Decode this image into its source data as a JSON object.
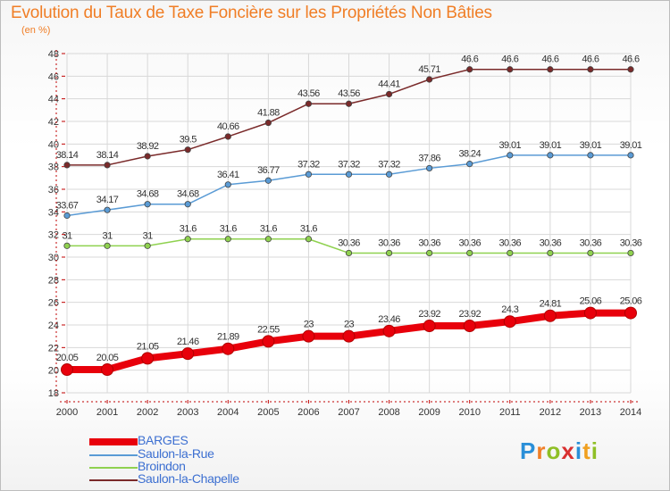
{
  "title": "Evolution du Taux de Taxe Foncière sur les Propriétés Non Bâties",
  "subtitle": "(en %)",
  "logo": {
    "text": "Proxiti"
  },
  "chart_data": {
    "type": "line",
    "x": [
      "2000",
      "2001",
      "2002",
      "2003",
      "2004",
      "2005",
      "2006",
      "2007",
      "2008",
      "2009",
      "2010",
      "2011",
      "2012",
      "2013",
      "2014"
    ],
    "ylim": [
      18,
      48
    ],
    "yticks": [
      18,
      20,
      22,
      24,
      26,
      28,
      30,
      32,
      34,
      36,
      38,
      40,
      42,
      44,
      46,
      48
    ],
    "grid": true,
    "legend_position": "bottom-left",
    "series": [
      {
        "name": "BARGES",
        "color": "#e8000b",
        "values": [
          20.05,
          20.05,
          21.05,
          21.46,
          21.89,
          22.55,
          23,
          23,
          23.46,
          23.92,
          23.92,
          24.3,
          24.81,
          25.06,
          25.06
        ],
        "labels": [
          "20.05",
          "20.05",
          "21.05",
          "21.46",
          "21.89",
          "22.55",
          "23",
          "23",
          "23.46",
          "23.92",
          "23.92",
          "24.3",
          "24.81",
          "25.06",
          "25.06"
        ]
      },
      {
        "name": "Saulon-la-Rue",
        "color": "#5a9bd5",
        "values": [
          33.67,
          34.17,
          34.68,
          34.68,
          36.41,
          36.77,
          37.32,
          37.32,
          37.32,
          37.86,
          38.24,
          39.01,
          39.01,
          39.01,
          39.01
        ],
        "labels": [
          "33.67",
          "34.17",
          "34.68",
          "34.68",
          "36.41",
          "36.77",
          "37.32",
          "37.32",
          "37.32",
          "37.86",
          "38.24",
          "39.01",
          "39.01",
          "39.01",
          "39.01"
        ]
      },
      {
        "name": "Broindon",
        "color": "#8fd14f",
        "values": [
          31,
          31,
          31,
          31.6,
          31.6,
          31.6,
          31.6,
          30.36,
          30.36,
          30.36,
          30.36,
          30.36,
          30.36,
          30.36,
          30.36
        ],
        "labels": [
          "31",
          "31",
          "31",
          "31.6",
          "31.6",
          "31.6",
          "31.6",
          "30.36",
          "30.36",
          "30.36",
          "30.36",
          "30.36",
          "30.36",
          "30.36",
          "30.36"
        ]
      },
      {
        "name": "Saulon-la-Chapelle",
        "color": "#7a2a2a",
        "values": [
          38.14,
          38.14,
          38.92,
          39.5,
          40.66,
          41.88,
          43.56,
          43.56,
          44.41,
          45.71,
          46.6,
          46.6,
          46.6,
          46.6,
          46.6
        ],
        "labels": [
          "38.14",
          "38.14",
          "38.92",
          "39.5",
          "40.66",
          "41.88",
          "43.56",
          "43.56",
          "44.41",
          "45.71",
          "46.6",
          "46.6",
          "46.6",
          "46.6",
          "46.6"
        ]
      }
    ]
  }
}
